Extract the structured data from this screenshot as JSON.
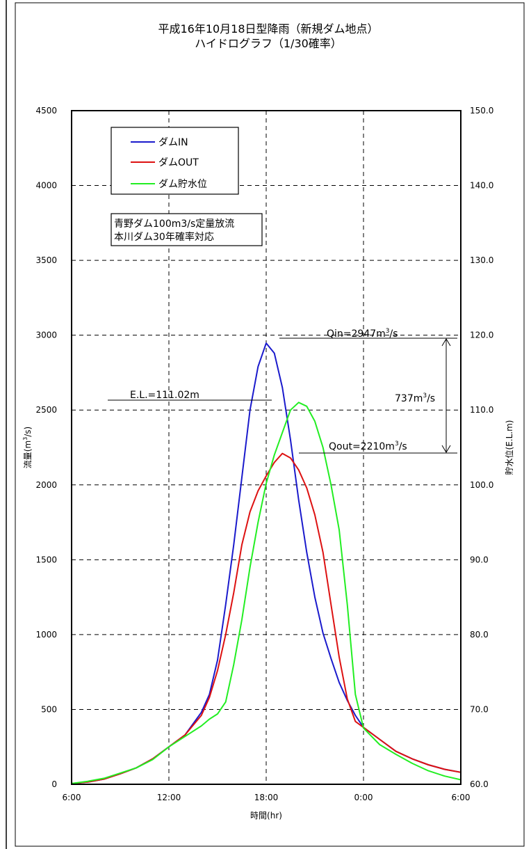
{
  "chart_data": {
    "type": "line",
    "title_line1": "平成16年10月18日型降雨（新規ダム地点）",
    "title_line2": "ハイドログラフ（1/30確率）",
    "xlabel": "時間(hr)",
    "ylabel_left_text": "流量(m",
    "ylabel_left_sup": "3",
    "ylabel_left_tail": "/s)",
    "ylabel_right": "貯水位(E.L.m)",
    "x_ticks": [
      "6:00",
      "12:00",
      "18:00",
      "0:00",
      "6:00"
    ],
    "x_tick_hours": [
      6,
      12,
      18,
      24,
      30
    ],
    "xlim": [
      6,
      30
    ],
    "y_left_ticks": [
      "0",
      "500",
      "1000",
      "1500",
      "2000",
      "2500",
      "3000",
      "3500",
      "4000",
      "4500"
    ],
    "y_left_values": [
      0,
      500,
      1000,
      1500,
      2000,
      2500,
      3000,
      3500,
      4000,
      4500
    ],
    "ylim_left": [
      0,
      4500
    ],
    "y_right_ticks": [
      "60.0",
      "70.0",
      "80.0",
      "90.0",
      "100.0",
      "110.0",
      "120.0",
      "130.0",
      "140.0",
      "150.0"
    ],
    "y_right_values": [
      60,
      70,
      80,
      90,
      100,
      110,
      120,
      130,
      140,
      150
    ],
    "ylim_right": [
      60,
      150
    ],
    "grid": "dashed",
    "legend_position": "top-left",
    "series": [
      {
        "name": "ダムIN",
        "color": "#1a1acc",
        "axis": "left",
        "x": [
          6,
          7,
          8,
          9,
          10,
          11,
          12,
          13,
          14,
          14.5,
          15,
          15.5,
          16,
          16.5,
          17,
          17.5,
          18,
          18.5,
          19,
          19.5,
          20,
          20.5,
          21,
          21.5,
          22,
          22.5,
          23,
          23.5,
          24,
          25,
          26,
          27,
          28,
          29,
          30
        ],
        "values": [
          5,
          15,
          35,
          70,
          110,
          170,
          250,
          330,
          480,
          600,
          830,
          1200,
          1600,
          2050,
          2500,
          2790,
          2947,
          2880,
          2650,
          2300,
          1900,
          1550,
          1250,
          1010,
          840,
          680,
          560,
          460,
          380,
          300,
          220,
          170,
          130,
          100,
          80
        ]
      },
      {
        "name": "ダムOUT",
        "color": "#dd1111",
        "axis": "left",
        "x": [
          6,
          7,
          8,
          9,
          10,
          11,
          12,
          13,
          14,
          14.5,
          15,
          15.5,
          16,
          16.5,
          17,
          17.5,
          18,
          18.5,
          19,
          19.5,
          20,
          20.5,
          21,
          21.5,
          22,
          22.5,
          23,
          23.5,
          24,
          25,
          26,
          27,
          28,
          29,
          30
        ],
        "values": [
          5,
          15,
          35,
          70,
          110,
          170,
          250,
          330,
          460,
          580,
          760,
          1000,
          1280,
          1600,
          1820,
          1960,
          2060,
          2150,
          2210,
          2180,
          2100,
          1980,
          1800,
          1550,
          1200,
          850,
          570,
          420,
          380,
          300,
          220,
          170,
          130,
          100,
          80
        ]
      },
      {
        "name": "ダム貯水位",
        "color": "#22ee22",
        "axis": "right",
        "x": [
          6,
          7,
          8,
          9,
          10,
          11,
          12,
          13,
          14,
          14.5,
          15,
          15.5,
          16,
          16.5,
          17,
          17.5,
          18,
          18.5,
          19,
          19.5,
          20,
          20.5,
          21,
          21.5,
          22,
          22.5,
          23,
          23.5,
          24,
          25,
          26,
          27,
          28,
          29,
          30
        ],
        "values": [
          60.1,
          60.4,
          60.8,
          61.5,
          62.2,
          63.3,
          65.0,
          66.4,
          67.8,
          68.7,
          69.4,
          71.0,
          76.0,
          82.0,
          89.0,
          95.0,
          100.2,
          104.0,
          107.0,
          110.0,
          111.02,
          110.5,
          108.5,
          105.0,
          100.0,
          94.0,
          84.0,
          72.0,
          67.5,
          65.3,
          64.0,
          62.8,
          61.8,
          61.1,
          60.6
        ]
      }
    ],
    "info_box_lines": [
      "青野ダム100m3/s定量放流",
      "本川ダム30年確率対応"
    ],
    "annotations": {
      "qin_text": "Qin=2947m",
      "qin_sup": "3",
      "qin_tail": "/s",
      "qout_text": "Qout=2210m",
      "qout_sup": "3",
      "qout_tail": "/s",
      "diff_text": "737m",
      "diff_sup": "3",
      "diff_tail": "/s",
      "el_text": "E.L.=111.02m"
    },
    "annotation_values": {
      "qin": 2947,
      "qout": 2210,
      "el": 111.02
    }
  }
}
